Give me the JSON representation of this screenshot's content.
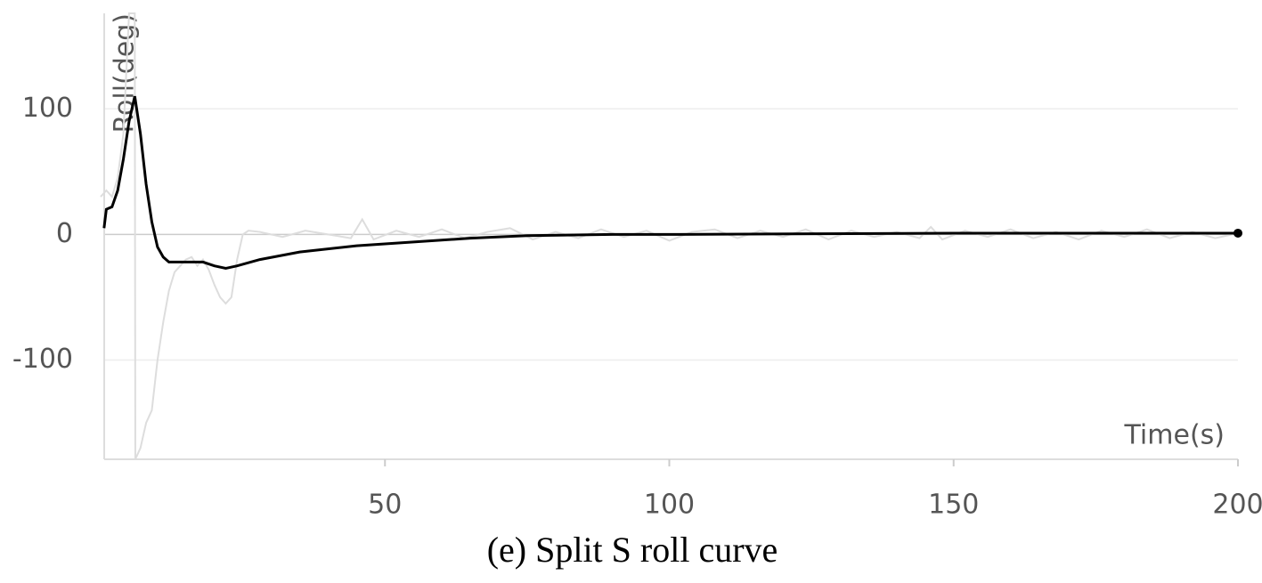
{
  "chart_data": {
    "type": "line",
    "caption": "(e) Split S roll curve",
    "xlabel": "Time(s)",
    "ylabel": "Roll(deg)",
    "xlim": [
      0,
      200
    ],
    "xticks": [
      50,
      100,
      150,
      200
    ],
    "ylim": [
      -179,
      176
    ],
    "yticks": [
      100,
      0,
      -100
    ],
    "grid": true,
    "series": [
      {
        "color": "#dddddd",
        "x": [
          0,
          1,
          2,
          3,
          4,
          5,
          6,
          6.1,
          7,
          8,
          9,
          10,
          11,
          12,
          13,
          14,
          15,
          16,
          17,
          18,
          19,
          20,
          21,
          22,
          23,
          24,
          25,
          26,
          28,
          32,
          36,
          40,
          44,
          46,
          48,
          52,
          56,
          60,
          64,
          68,
          72,
          76,
          80,
          84,
          88,
          92,
          96,
          100,
          104,
          108,
          112,
          116,
          120,
          124,
          128,
          132,
          136,
          140,
          144,
          146,
          148,
          152,
          156,
          160,
          164,
          168,
          172,
          176,
          180,
          184,
          188,
          192,
          196,
          200
        ],
        "values": [
          30,
          35,
          30,
          45,
          80,
          176,
          176,
          -179,
          -170,
          -150,
          -140,
          -100,
          -70,
          -45,
          -30,
          -25,
          -20,
          -18,
          -25,
          -20,
          -28,
          -40,
          -50,
          -55,
          -50,
          -20,
          0,
          3,
          2,
          -2,
          3,
          0,
          -3,
          12,
          -4,
          3,
          -2,
          4,
          -3,
          2,
          5,
          -4,
          2,
          -3,
          4,
          -2,
          3,
          -5,
          2,
          4,
          -3,
          3,
          -2,
          4,
          -4,
          3,
          -2,
          2,
          -3,
          6,
          -4,
          3,
          -2,
          4,
          -3,
          2,
          -4,
          3,
          -2,
          4,
          -3,
          2,
          -3,
          1
        ]
      },
      {
        "color": "#000000",
        "x": [
          0.6,
          1,
          2,
          3,
          4,
          5,
          6,
          7,
          8,
          9,
          10,
          11,
          12,
          15,
          18,
          20,
          22,
          24,
          28,
          35,
          45,
          55,
          65,
          75,
          90,
          100,
          150,
          200
        ],
        "values": [
          5,
          20,
          22,
          35,
          60,
          90,
          110,
          80,
          40,
          10,
          -10,
          -18,
          -22,
          -22,
          -22,
          -25,
          -27,
          -25,
          -20,
          -14,
          -9,
          -6,
          -3,
          -1,
          0,
          0,
          1,
          1
        ]
      }
    ]
  }
}
